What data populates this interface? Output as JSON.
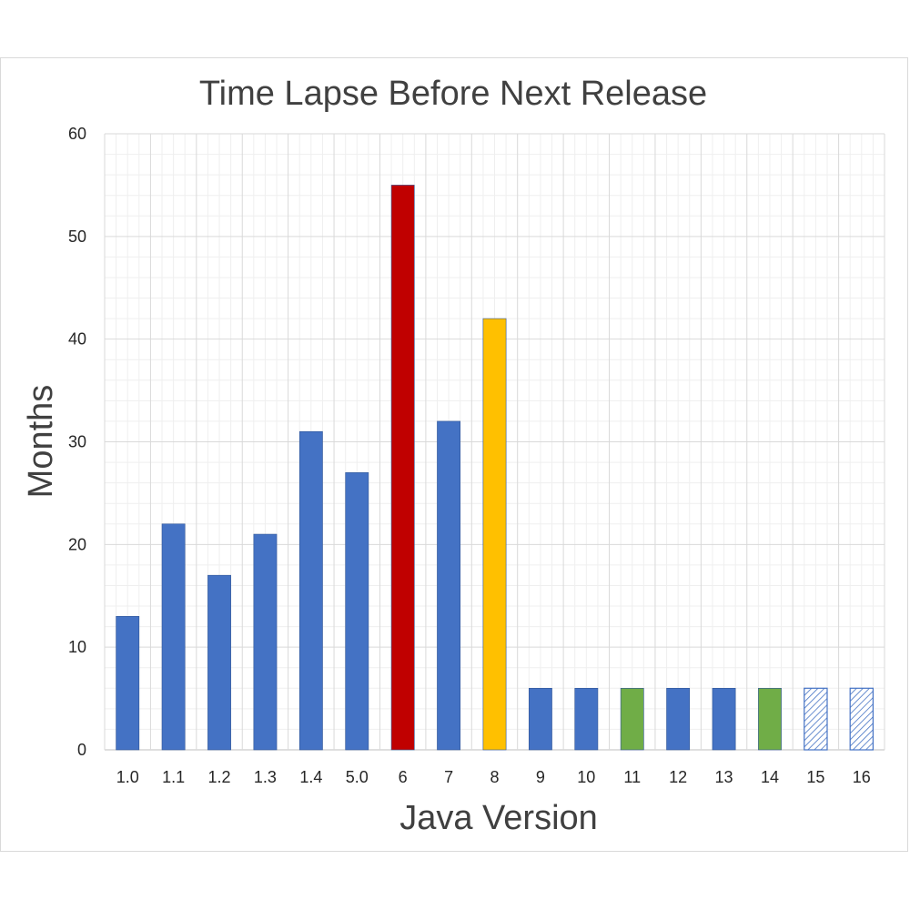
{
  "chart_data": {
    "type": "bar",
    "title": "Time Lapse Before Next Release",
    "xlabel": "Java Version",
    "ylabel": "Months",
    "categories": [
      "1.0",
      "1.1",
      "1.2",
      "1.3",
      "1.4",
      "5.0",
      "6",
      "7",
      "8",
      "9",
      "10",
      "11",
      "12",
      "13",
      "14",
      "15",
      "16"
    ],
    "values": [
      13,
      22,
      17,
      21,
      31,
      27,
      55,
      32,
      42,
      6,
      6,
      6,
      6,
      6,
      6,
      6,
      6
    ],
    "bar_styles": [
      "solid",
      "solid",
      "solid",
      "solid",
      "solid",
      "solid",
      "solid",
      "solid",
      "solid",
      "solid",
      "solid",
      "solid",
      "solid",
      "solid",
      "solid",
      "hatched",
      "hatched"
    ],
    "bar_colors": [
      "#4472C4",
      "#4472C4",
      "#4472C4",
      "#4472C4",
      "#4472C4",
      "#4472C4",
      "#C00000",
      "#4472C4",
      "#FFC000",
      "#4472C4",
      "#4472C4",
      "#70AD47",
      "#4472C4",
      "#4472C4",
      "#70AD47",
      "#4472C4",
      "#4472C4"
    ],
    "ylim": [
      0,
      60
    ],
    "yticks": [
      0,
      10,
      20,
      30,
      40,
      50,
      60
    ],
    "grid": true,
    "legend": "none"
  }
}
